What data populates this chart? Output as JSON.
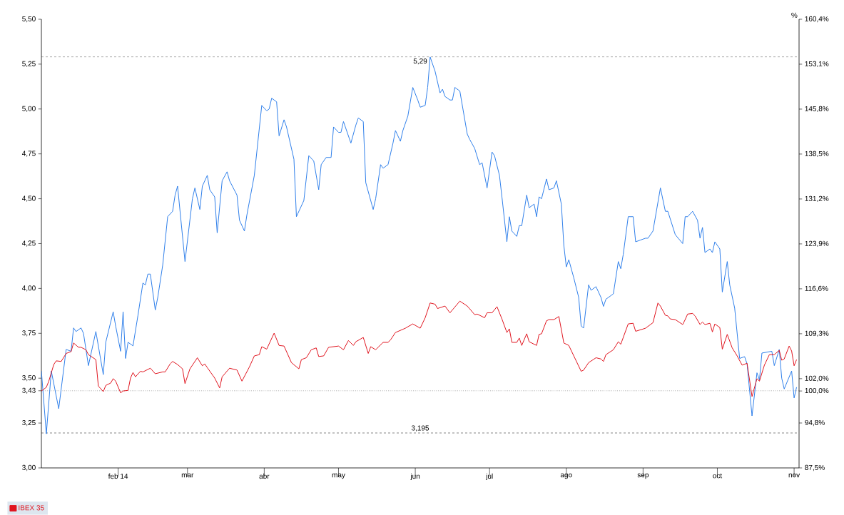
{
  "chart_data": {
    "type": "line",
    "y2label": "%",
    "xlim": [
      "2014-01-01",
      "2014-11-03"
    ],
    "xticks": [
      {
        "value": "2014-02-01",
        "label": "feb 14"
      },
      {
        "value": "2014-03-01",
        "label": "mar"
      },
      {
        "value": "2014-04-01",
        "label": "abr"
      },
      {
        "value": "2014-05-01",
        "label": "may"
      },
      {
        "value": "2014-06-01",
        "label": "jun"
      },
      {
        "value": "2014-07-01",
        "label": "jul"
      },
      {
        "value": "2014-08-01",
        "label": "ago"
      },
      {
        "value": "2014-09-01",
        "label": "sep"
      },
      {
        "value": "2014-10-01",
        "label": "oct"
      },
      {
        "value": "2014-11-01",
        "label": "nov"
      }
    ],
    "ylim": [
      3.0,
      5.5
    ],
    "yticks": [
      {
        "value": 3.0,
        "label": "3,00"
      },
      {
        "value": 3.25,
        "label": "3,25"
      },
      {
        "value": 3.43,
        "label": "3,43"
      },
      {
        "value": 3.5,
        "label": "3,50"
      },
      {
        "value": 3.75,
        "label": "3,75"
      },
      {
        "value": 4.0,
        "label": "4,00"
      },
      {
        "value": 4.25,
        "label": "4,25"
      },
      {
        "value": 4.5,
        "label": "4,50"
      },
      {
        "value": 4.75,
        "label": "4,75"
      },
      {
        "value": 5.0,
        "label": "5,00"
      },
      {
        "value": 5.25,
        "label": "5,25"
      },
      {
        "value": 5.5,
        "label": "5,50"
      }
    ],
    "y2lim": [
      87.5,
      160.4
    ],
    "y2ticks": [
      {
        "value": 87.5,
        "label": "87,5%"
      },
      {
        "value": 94.8,
        "label": "94,8%"
      },
      {
        "value": 100.0,
        "label": "100,0%"
      },
      {
        "value": 102.0,
        "label": "102,0%"
      },
      {
        "value": 109.3,
        "label": "109,3%"
      },
      {
        "value": 116.6,
        "label": "116,6%"
      },
      {
        "value": 123.9,
        "label": "123,9%"
      },
      {
        "value": 131.2,
        "label": "131,2%"
      },
      {
        "value": 138.5,
        "label": "138,5%"
      },
      {
        "value": 145.8,
        "label": "145,8%"
      },
      {
        "value": 153.1,
        "label": "153,1%"
      },
      {
        "value": 160.4,
        "label": "160,4%"
      }
    ],
    "ref_lines": [
      {
        "axis": "y",
        "value": 5.29,
        "label": "5,29",
        "color": "#333333",
        "line_style": "dashed"
      },
      {
        "axis": "y",
        "value": 3.195,
        "label": "3,195",
        "color": "#333333",
        "line_style": "dashed"
      },
      {
        "axis": "y",
        "value": 3.43,
        "color": "#666666",
        "line_style": "dotted"
      }
    ],
    "legend": "bottom left",
    "marker": "none",
    "line_style": "solid",
    "grid": false,
    "series": [
      {
        "color": "#2f7fea",
        "x": [
          "2014-01-01",
          "2014-01-03",
          "2014-01-05",
          "2014-01-08",
          "2014-01-11",
          "2014-01-13",
          "2014-01-14",
          "2014-01-15",
          "2014-01-17",
          "2014-01-18",
          "2014-01-20",
          "2014-01-23",
          "2014-01-26",
          "2014-01-27",
          "2014-01-30",
          "2014-01-31",
          "2014-02-02",
          "2014-02-03",
          "2014-02-04",
          "2014-02-05",
          "2014-02-07",
          "2014-02-09",
          "2014-02-11",
          "2014-02-12",
          "2014-02-13",
          "2014-02-14",
          "2014-02-16",
          "2014-02-17",
          "2014-02-19",
          "2014-02-21",
          "2014-02-23",
          "2014-02-24",
          "2014-02-25",
          "2014-02-28",
          "2014-03-03",
          "2014-03-04",
          "2014-03-06",
          "2014-03-07",
          "2014-03-09",
          "2014-03-10",
          "2014-03-12",
          "2014-03-13",
          "2014-03-15",
          "2014-03-17",
          "2014-03-18",
          "2014-03-21",
          "2014-03-22",
          "2014-03-24",
          "2014-03-25",
          "2014-03-28",
          "2014-03-31",
          "2014-04-02",
          "2014-04-03",
          "2014-04-04",
          "2014-04-06",
          "2014-04-07",
          "2014-04-09",
          "2014-04-10",
          "2014-04-13",
          "2014-04-14",
          "2014-04-17",
          "2014-04-19",
          "2014-04-21",
          "2014-04-23",
          "2014-04-24",
          "2014-04-26",
          "2014-04-28",
          "2014-04-29",
          "2014-05-01",
          "2014-05-02",
          "2014-05-03",
          "2014-05-06",
          "2014-05-08",
          "2014-05-09",
          "2014-05-11",
          "2014-05-12",
          "2014-05-15",
          "2014-05-16",
          "2014-05-18",
          "2014-05-19",
          "2014-05-21",
          "2014-05-23",
          "2014-05-24",
          "2014-05-26",
          "2014-05-27",
          "2014-05-29",
          "2014-05-31",
          "2014-06-02",
          "2014-06-03",
          "2014-06-05",
          "2014-06-06",
          "2014-06-07",
          "2014-06-09",
          "2014-06-11",
          "2014-06-12",
          "2014-06-13",
          "2014-06-15",
          "2014-06-16",
          "2014-06-17",
          "2014-06-19",
          "2014-06-22",
          "2014-06-23",
          "2014-06-25",
          "2014-06-27",
          "2014-06-28",
          "2014-06-30",
          "2014-07-02",
          "2014-07-03",
          "2014-07-05",
          "2014-07-06",
          "2014-07-08",
          "2014-07-09",
          "2014-07-10",
          "2014-07-12",
          "2014-07-13",
          "2014-07-14",
          "2014-07-16",
          "2014-07-17",
          "2014-07-19",
          "2014-07-20",
          "2014-07-21",
          "2014-07-22",
          "2014-07-24",
          "2014-07-25",
          "2014-07-27",
          "2014-07-28",
          "2014-07-30",
          "2014-07-31",
          "2014-08-01",
          "2014-08-02",
          "2014-08-04",
          "2014-08-06",
          "2014-08-07",
          "2014-08-08",
          "2014-08-10",
          "2014-08-11",
          "2014-08-13",
          "2014-08-15",
          "2014-08-16",
          "2014-08-17",
          "2014-08-19",
          "2014-08-20",
          "2014-08-22",
          "2014-08-23",
          "2014-08-24",
          "2014-08-26",
          "2014-08-28",
          "2014-08-29",
          "2014-08-31",
          "2014-09-02",
          "2014-09-03",
          "2014-09-05",
          "2014-09-08",
          "2014-09-10",
          "2014-09-11",
          "2014-09-14",
          "2014-09-17",
          "2014-09-18",
          "2014-09-19",
          "2014-09-21",
          "2014-09-23",
          "2014-09-24",
          "2014-09-25",
          "2014-09-26",
          "2014-09-28",
          "2014-09-29",
          "2014-09-30",
          "2014-10-02",
          "2014-10-03",
          "2014-10-05",
          "2014-10-06",
          "2014-10-08",
          "2014-10-10",
          "2014-10-12",
          "2014-10-13",
          "2014-10-15",
          "2014-10-17",
          "2014-10-18",
          "2014-10-19",
          "2014-10-23",
          "2014-10-24",
          "2014-10-26",
          "2014-10-27",
          "2014-10-28",
          "2014-10-31",
          "2014-11-01",
          "2014-11-02"
        ],
        "values": [
          3.54,
          3.19,
          3.54,
          3.33,
          3.66,
          3.65,
          3.78,
          3.76,
          3.78,
          3.75,
          3.57,
          3.76,
          3.52,
          3.7,
          3.87,
          3.79,
          3.65,
          3.87,
          3.61,
          3.7,
          3.68,
          3.85,
          4.03,
          4.02,
          4.08,
          4.08,
          3.88,
          3.95,
          4.13,
          4.4,
          4.43,
          4.52,
          4.57,
          4.15,
          4.5,
          4.56,
          4.44,
          4.57,
          4.63,
          4.55,
          4.51,
          4.31,
          4.6,
          4.65,
          4.6,
          4.52,
          4.38,
          4.32,
          4.41,
          4.63,
          5.02,
          4.99,
          5.0,
          5.06,
          5.04,
          4.85,
          4.94,
          4.9,
          4.72,
          4.4,
          4.49,
          4.74,
          4.71,
          4.55,
          4.69,
          4.73,
          4.73,
          4.9,
          4.87,
          4.87,
          4.93,
          4.81,
          4.91,
          4.95,
          4.93,
          4.59,
          4.44,
          4.5,
          4.69,
          4.67,
          4.69,
          4.81,
          4.88,
          4.82,
          4.88,
          4.96,
          5.12,
          5.05,
          5.01,
          5.02,
          5.12,
          5.29,
          5.21,
          5.09,
          5.11,
          5.07,
          5.05,
          5.05,
          5.12,
          5.1,
          4.86,
          4.83,
          4.78,
          4.69,
          4.7,
          4.56,
          4.76,
          4.74,
          4.63,
          4.51,
          4.26,
          4.4,
          4.32,
          4.29,
          4.35,
          4.35,
          4.52,
          4.45,
          4.47,
          4.4,
          4.51,
          4.5,
          4.61,
          4.55,
          4.56,
          4.6,
          4.47,
          4.24,
          4.12,
          4.16,
          4.06,
          3.95,
          3.79,
          3.78,
          4.02,
          3.99,
          4.01,
          3.95,
          3.9,
          3.94,
          3.96,
          3.97,
          4.15,
          4.11,
          4.19,
          4.4,
          4.4,
          4.26,
          4.27,
          4.28,
          4.28,
          4.32,
          4.56,
          4.43,
          4.43,
          4.3,
          4.25,
          4.4,
          4.4,
          4.43,
          4.38,
          4.28,
          4.34,
          4.2,
          4.22,
          4.2,
          4.26,
          4.22,
          3.98,
          4.15,
          4.02,
          3.89,
          3.61,
          3.62,
          3.58,
          3.29,
          3.53,
          3.49,
          3.64,
          3.65,
          3.57,
          3.66,
          3.5,
          3.44,
          3.54,
          3.39,
          3.45
        ]
      },
      {
        "name": "IBEX 35",
        "color": "#e0141e",
        "axis": "y2",
        "x": [
          "2014-01-01",
          "2014-01-03",
          "2014-01-04",
          "2014-01-06",
          "2014-01-07",
          "2014-01-09",
          "2014-01-11",
          "2014-01-13",
          "2014-01-14",
          "2014-01-16",
          "2014-01-17",
          "2014-01-19",
          "2014-01-20",
          "2014-01-23",
          "2014-01-24",
          "2014-01-26",
          "2014-01-27",
          "2014-01-29",
          "2014-01-30",
          "2014-01-31",
          "2014-02-02",
          "2014-02-03",
          "2014-02-05",
          "2014-02-06",
          "2014-02-07",
          "2014-02-08",
          "2014-02-10",
          "2014-02-11",
          "2014-02-14",
          "2014-02-16",
          "2014-02-19",
          "2014-02-20",
          "2014-02-22",
          "2014-02-23",
          "2014-02-25",
          "2014-02-27",
          "2014-02-28",
          "2014-03-02",
          "2014-03-05",
          "2014-03-07",
          "2014-03-08",
          "2014-03-09",
          "2014-03-12",
          "2014-03-14",
          "2014-03-15",
          "2014-03-18",
          "2014-03-21",
          "2014-03-23",
          "2014-03-26",
          "2014-03-28",
          "2014-03-30",
          "2014-03-31",
          "2014-04-02",
          "2014-04-05",
          "2014-04-07",
          "2014-04-09",
          "2014-04-12",
          "2014-04-15",
          "2014-04-16",
          "2014-04-18",
          "2014-04-20",
          "2014-04-22",
          "2014-04-23",
          "2014-04-25",
          "2014-04-27",
          "2014-05-01",
          "2014-05-03",
          "2014-05-05",
          "2014-05-07",
          "2014-05-08",
          "2014-05-11",
          "2014-05-13",
          "2014-05-14",
          "2014-05-16",
          "2014-05-19",
          "2014-05-21",
          "2014-05-22",
          "2014-05-24",
          "2014-05-28",
          "2014-05-31",
          "2014-06-03",
          "2014-06-05",
          "2014-06-07",
          "2014-06-09",
          "2014-06-10",
          "2014-06-13",
          "2014-06-15",
          "2014-06-19",
          "2014-06-22",
          "2014-06-25",
          "2014-06-26",
          "2014-06-29",
          "2014-06-30",
          "2014-07-02",
          "2014-07-04",
          "2014-07-06",
          "2014-07-08",
          "2014-07-09",
          "2014-07-10",
          "2014-07-12",
          "2014-07-13",
          "2014-07-14",
          "2014-07-16",
          "2014-07-17",
          "2014-07-20",
          "2014-07-21",
          "2014-07-22",
          "2014-07-24",
          "2014-07-25",
          "2014-07-27",
          "2014-07-29",
          "2014-07-31",
          "2014-08-02",
          "2014-08-07",
          "2014-08-08",
          "2014-08-10",
          "2014-08-13",
          "2014-08-15",
          "2014-08-16",
          "2014-08-17",
          "2014-08-20",
          "2014-08-22",
          "2014-08-23",
          "2014-08-26",
          "2014-08-28",
          "2014-08-29",
          "2014-09-02",
          "2014-09-05",
          "2014-09-07",
          "2014-09-08",
          "2014-09-10",
          "2014-09-11",
          "2014-09-12",
          "2014-09-14",
          "2014-09-17",
          "2014-09-18",
          "2014-09-19",
          "2014-09-21",
          "2014-09-22",
          "2014-09-24",
          "2014-09-25",
          "2014-09-26",
          "2014-09-28",
          "2014-09-29",
          "2014-09-30",
          "2014-10-02",
          "2014-10-03",
          "2014-10-05",
          "2014-10-07",
          "2014-10-09",
          "2014-10-11",
          "2014-10-13",
          "2014-10-15",
          "2014-10-17",
          "2014-10-18",
          "2014-10-20",
          "2014-10-22",
          "2014-10-24",
          "2014-10-26",
          "2014-10-27",
          "2014-10-28",
          "2014-10-30",
          "2014-10-31",
          "2014-11-01",
          "2014-11-02"
        ],
        "values": [
          100.0,
          100.6,
          101.6,
          104.3,
          104.9,
          104.8,
          106.1,
          106.4,
          107.8,
          107.1,
          107.1,
          106.7,
          105.9,
          105.1,
          100.8,
          99.9,
          100.9,
          101.3,
          102.0,
          101.6,
          99.7,
          100.0,
          100.1,
          102.1,
          103.0,
          102.3,
          103.2,
          103.1,
          103.7,
          102.8,
          103.1,
          103.1,
          104.4,
          104.8,
          104.3,
          103.6,
          101.2,
          103.6,
          105.4,
          104.1,
          104.4,
          103.8,
          102.1,
          100.5,
          102.3,
          103.7,
          103.4,
          101.6,
          103.9,
          105.7,
          105.9,
          107.2,
          106.8,
          109.4,
          107.4,
          107.3,
          104.6,
          103.6,
          105.1,
          105.4,
          106.7,
          107.0,
          105.6,
          105.7,
          107.1,
          107.3,
          106.7,
          108.2,
          107.4,
          108.0,
          108.7,
          106.1,
          107.2,
          106.7,
          107.9,
          107.9,
          108.3,
          109.5,
          110.2,
          110.9,
          110.2,
          111.9,
          114.3,
          114.1,
          113.4,
          113.8,
          112.7,
          114.6,
          113.8,
          112.4,
          112.5,
          111.9,
          112.7,
          112.7,
          113.7,
          111.7,
          109.5,
          110.1,
          107.9,
          107.9,
          108.6,
          107.4,
          109.3,
          108.0,
          107.4,
          109.2,
          109.3,
          111.4,
          111.6,
          111.6,
          112.1,
          107.8,
          107.4,
          103.2,
          103.4,
          104.6,
          105.4,
          105.2,
          104.8,
          105.9,
          106.7,
          108.0,
          107.6,
          110.9,
          111.0,
          109.7,
          110.2,
          111.1,
          114.3,
          113.8,
          112.3,
          112.2,
          111.7,
          111.6,
          110.8,
          111.6,
          112.5,
          112.6,
          112.2,
          110.8,
          111.2,
          110.8,
          111.0,
          109.6,
          110.9,
          110.3,
          106.8,
          109.2,
          107.0,
          105.7,
          104.2,
          104.5,
          99.1,
          102.0,
          101.6,
          104.2,
          105.9,
          105.9,
          106.6,
          105.0,
          105.2,
          107.3,
          106.5,
          104.1,
          105.1
        ]
      }
    ]
  }
}
